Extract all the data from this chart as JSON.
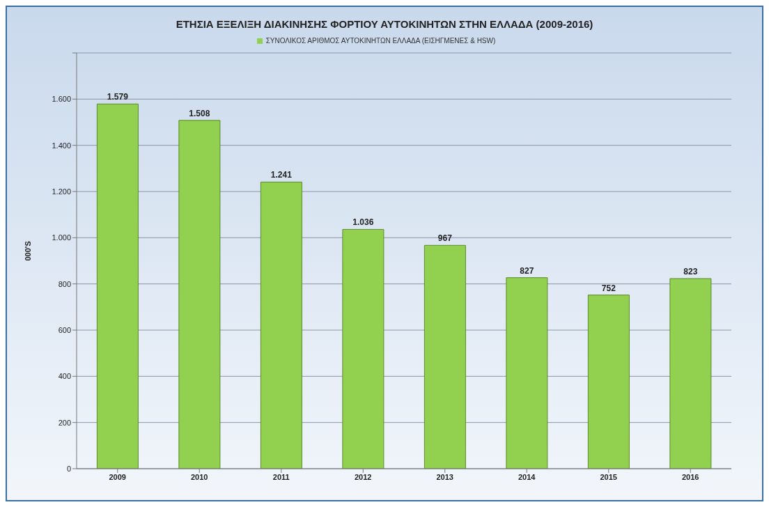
{
  "chart_data": {
    "type": "bar",
    "title": "ΕΤΗΣΙΑ ΕΞΕΛΙΞΗ ΔΙΑΚΙΝΗΣΗΣ ΦΟΡΤΙΟΥ ΑΥΤΟΚΙΝΗΤΩΝ ΣΤΗΝ ΕΛΛΑΔΑ (2009-2016)",
    "ylabel": "000'S",
    "categories": [
      "2009",
      "2010",
      "2011",
      "2012",
      "2013",
      "2014",
      "2015",
      "2016"
    ],
    "series": [
      {
        "name": "ΣΥΝΟΛΙΚΟΣ ΑΡΙΘΜΟΣ ΑΥΤΟΚΙΝΗΤΩΝ  ΕΛΛΑΔΑ  (ΕΙΣΗΓΜΕΝΕΣ  & HSW)",
        "color": "#92d050",
        "values": [
          1579,
          1508,
          1241,
          1036,
          967,
          827,
          752,
          823
        ],
        "value_labels": [
          "1.579",
          "1.508",
          "1.241",
          "1.036",
          "967",
          "827",
          "752",
          "823"
        ]
      }
    ],
    "ylim": [
      0,
      1800
    ],
    "yticks": [
      0,
      200,
      400,
      600,
      800,
      {
        "value": 1000,
        "label": "1.000"
      },
      {
        "value": 1200,
        "label": "1.200"
      },
      {
        "value": 1400,
        "label": "1.400"
      },
      {
        "value": 1600,
        "label": "1.600"
      },
      {
        "value": 1800,
        "label": null
      }
    ],
    "grid": "y",
    "legend": "top"
  }
}
